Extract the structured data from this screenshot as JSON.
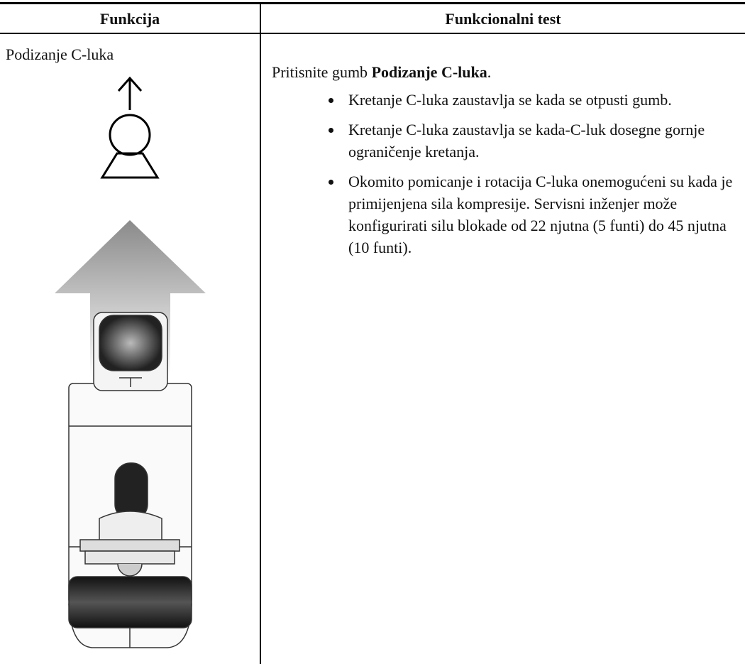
{
  "table": {
    "header": [
      "Funkcija",
      "Funkcionalni test"
    ],
    "rows": [
      {
        "function": "Podizanje C-luka",
        "test": {
          "intro": "Pritisnite gumb",
          "intro_bold": "Podizanje C-luka",
          "intro_end": ".",
          "bullets": [
            "Kretanje C-luka zaustavlja se kada se otpusti gumb.",
            "Kretanje C-luka zaustavlja se kada-C-luk dosegne gornje ograničenje kretanja.",
            "Okomito pomicanje i rotacija C-luka onemogućeni su kada je primijenjena sila kompresije. Servisni inženjer može konfigurirati silu blokade od 22 njutna (5 funti) do 45 njutna (10 funti)."
          ]
        }
      }
    ]
  }
}
